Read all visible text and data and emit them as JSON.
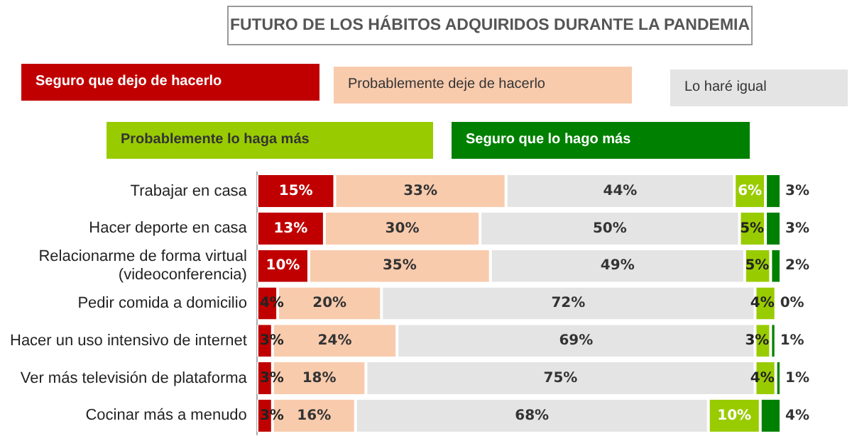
{
  "chart_data": {
    "type": "bar",
    "orientation": "horizontal",
    "stacked": true,
    "title": "FUTURO DE LOS HÁBITOS ADQUIRIDOS DURANTE LA PANDEMIA",
    "categories": [
      "Trabajar en casa",
      "Hacer deporte en casa",
      "Relacionarme de forma virtual\n(videoconferencia)",
      "Pedir comida a domicilio",
      "Hacer un uso intensivo de internet",
      "Ver más televisión de plataforma",
      "Cocinar más a menudo"
    ],
    "series": [
      {
        "name": "Seguro que dejo de hacerlo",
        "color": "#c00000",
        "values": [
          15,
          13,
          10,
          4,
          3,
          3,
          3
        ],
        "value_labels": [
          "15%",
          "13%",
          "10%",
          "4%",
          "3%",
          "3%",
          "3%"
        ]
      },
      {
        "name": "Probablemente deje de hacerlo",
        "color": "#f8cbad",
        "values": [
          33,
          30,
          35,
          20,
          24,
          18,
          16
        ],
        "value_labels": [
          "33%",
          "30%",
          "35%",
          "20%",
          "24%",
          "18%",
          "16%"
        ]
      },
      {
        "name": "Lo haré igual",
        "color": "#e4e4e4",
        "values": [
          44,
          50,
          49,
          72,
          69,
          75,
          68
        ],
        "value_labels": [
          "44%",
          "50%",
          "49%",
          "72%",
          "69%",
          "75%",
          "68%"
        ]
      },
      {
        "name": "Probablemente lo haga más",
        "color": "#99cc00",
        "values": [
          6,
          5,
          5,
          4,
          3,
          4,
          10
        ],
        "value_labels": [
          "6%",
          "5%",
          "5%",
          "4%",
          "3%",
          "4%",
          "10%"
        ]
      },
      {
        "name": "Seguro que lo hago más",
        "color": "#008000",
        "values": [
          3,
          3,
          2,
          0,
          1,
          1,
          4
        ],
        "value_labels": [
          "3%",
          "3%",
          "2%",
          "0%",
          "1%",
          "1%",
          "4%"
        ]
      }
    ],
    "xlim": [
      0,
      101
    ],
    "tick_labels": "y",
    "grid": false,
    "legend": "top"
  }
}
